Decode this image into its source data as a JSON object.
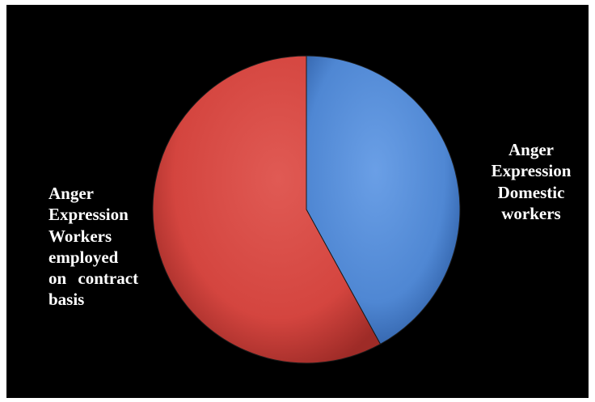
{
  "chart_data": {
    "type": "pie",
    "title": "",
    "slices": [
      {
        "lines": [
          "Anger",
          "Expression",
          "Domestic",
          "workers"
        ],
        "value": 42,
        "color": "#4f87d3"
      },
      {
        "lines": [
          "Anger",
          "Expression",
          "Workers",
          "employed",
          "on contract",
          "basis"
        ],
        "value": 58,
        "color": "#d4453f"
      }
    ],
    "background": "#000000",
    "legend": "none"
  }
}
